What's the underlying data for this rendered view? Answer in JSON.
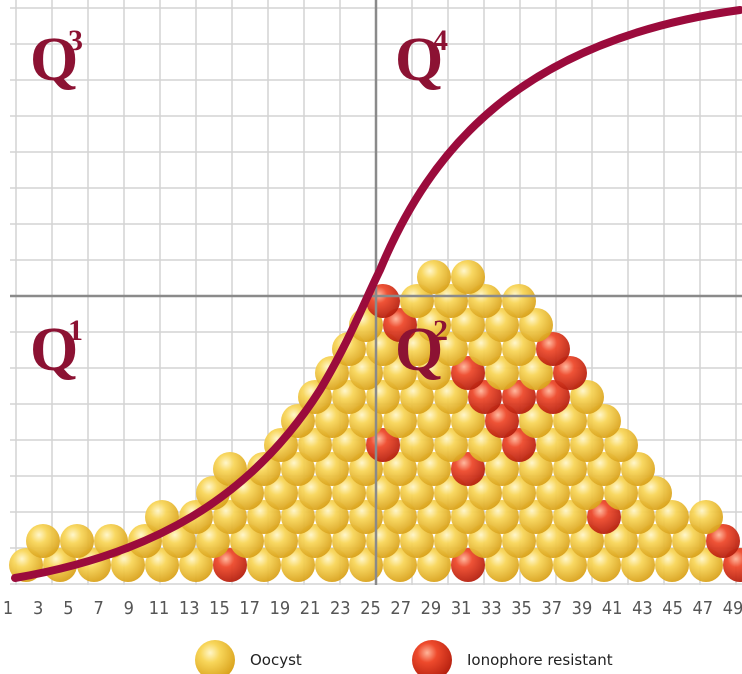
{
  "quadrants": [
    {
      "letter": "Q",
      "index": "3"
    },
    {
      "letter": "Q",
      "index": "4"
    },
    {
      "letter": "Q",
      "index": "1"
    },
    {
      "letter": "Q",
      "index": "2"
    }
  ],
  "x_labels": [
    "1",
    "3",
    "5",
    "7",
    "9",
    "11",
    "13",
    "15",
    "17",
    "19",
    "21",
    "23",
    "25",
    "27",
    "29",
    "31",
    "33",
    "35",
    "37",
    "39",
    "41",
    "43",
    "45",
    "47",
    "49"
  ],
  "legend": [
    {
      "label": "Oocyst"
    },
    {
      "label": "Ionophore resistant"
    }
  ]
}
